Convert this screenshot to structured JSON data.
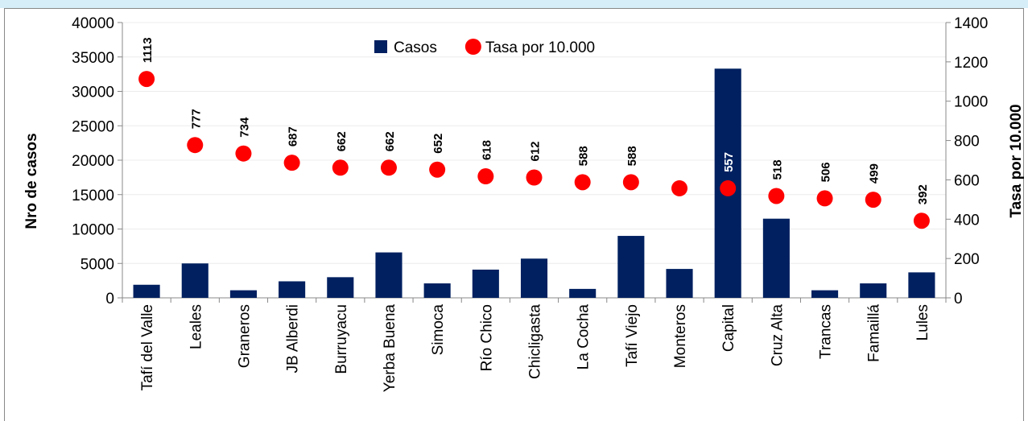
{
  "chart_data": {
    "type": "bar_scatter",
    "categories": [
      "Tafí del Valle",
      "Leales",
      "Graneros",
      "JB Alberdi",
      "Burruyacu",
      "Yerba Buena",
      "Simoca",
      "Río Chico",
      "Chicligasta",
      "La Cocha",
      "Tafí Viejo",
      "Monteros",
      "Capital",
      "Cruz Alta",
      "Trancas",
      "Famaillá",
      "Lules"
    ],
    "series": [
      {
        "name": "Casos",
        "color": "#002060",
        "type": "bar",
        "values": [
          1900,
          5000,
          1100,
          2400,
          3000,
          6600,
          2100,
          4100,
          5700,
          1300,
          9000,
          4200,
          33300,
          11500,
          1100,
          2100,
          3700
        ]
      },
      {
        "name": "Tasa por 10.000",
        "color": "#ff0000",
        "type": "scatter",
        "axis": "y2",
        "values": [
          1113,
          777,
          734,
          687,
          662,
          662,
          652,
          618,
          612,
          588,
          588,
          557,
          557,
          518,
          506,
          499,
          392
        ],
        "value_labels": [
          "1113",
          "777",
          "734",
          "687",
          "662",
          "662",
          "652",
          "618",
          "612",
          "588",
          "588",
          null,
          "557",
          "518",
          "506",
          "499",
          "392"
        ]
      }
    ],
    "ylabel": "Nro de casos",
    "y2label": "Tasa por 10.000",
    "ylim": [
      0,
      40000
    ],
    "yticks": [
      0,
      5000,
      10000,
      15000,
      20000,
      25000,
      30000,
      35000,
      40000
    ],
    "y2lim": [
      0,
      1400
    ],
    "y2ticks": [
      0,
      200,
      400,
      600,
      800,
      1000,
      1200,
      1400
    ],
    "grid": true,
    "legend": "top"
  }
}
